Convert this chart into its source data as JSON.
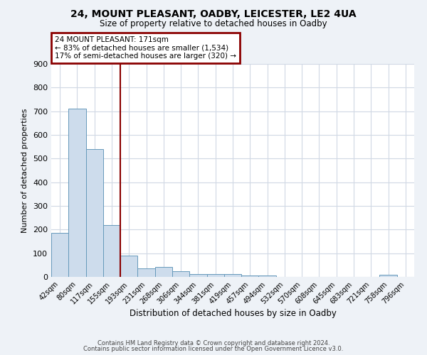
{
  "title1": "24, MOUNT PLEASANT, OADBY, LEICESTER, LE2 4UA",
  "title2": "Size of property relative to detached houses in Oadby",
  "xlabel": "Distribution of detached houses by size in Oadby",
  "ylabel": "Number of detached properties",
  "bar_labels": [
    "42sqm",
    "80sqm",
    "117sqm",
    "155sqm",
    "193sqm",
    "231sqm",
    "268sqm",
    "306sqm",
    "344sqm",
    "381sqm",
    "419sqm",
    "457sqm",
    "494sqm",
    "532sqm",
    "570sqm",
    "608sqm",
    "645sqm",
    "683sqm",
    "721sqm",
    "758sqm",
    "796sqm"
  ],
  "bar_values": [
    185,
    710,
    540,
    220,
    90,
    35,
    42,
    25,
    12,
    12,
    12,
    5,
    5,
    0,
    0,
    0,
    0,
    0,
    0,
    8,
    0
  ],
  "bar_color": "#cddcec",
  "bar_edge_color": "#6699bb",
  "ylim": [
    0,
    900
  ],
  "yticks": [
    0,
    100,
    200,
    300,
    400,
    500,
    600,
    700,
    800,
    900
  ],
  "property_label": "24 MOUNT PLEASANT: 171sqm",
  "annotation_line1": "← 83% of detached houses are smaller (1,534)",
  "annotation_line2": "17% of semi-detached houses are larger (320) →",
  "vline_color": "#8b0000",
  "vline_x_index": 3.5,
  "footer1": "Contains HM Land Registry data © Crown copyright and database right 2024.",
  "footer2": "Contains public sector information licensed under the Open Government Licence v3.0.",
  "background_color": "#eef2f7",
  "plot_background": "#ffffff",
  "grid_color": "#d0d8e4"
}
